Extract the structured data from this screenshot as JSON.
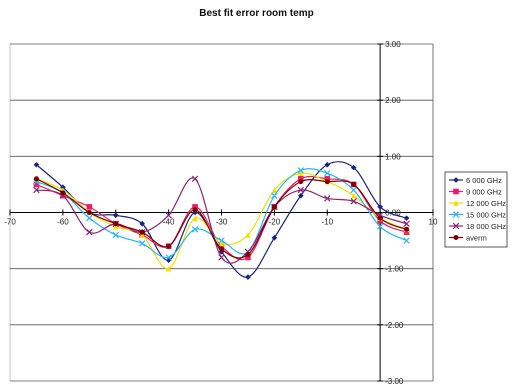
{
  "chart_data": {
    "type": "line",
    "title": "Best fit error room temp",
    "xlabel": "",
    "ylabel": "",
    "xlim": [
      -70,
      10
    ],
    "ylim": [
      -3,
      3
    ],
    "x_ticks": [
      -70,
      -60,
      -50,
      -40,
      -30,
      -20,
      -10,
      0,
      10
    ],
    "x_tick_labels": [
      "-70",
      "-60",
      "",
      "-40",
      "-30",
      "-20",
      "-10",
      "0",
      "10"
    ],
    "y_ticks": [
      3,
      2,
      1,
      0,
      -1,
      -2,
      -3
    ],
    "y_tick_labels": [
      "3.00",
      "2.00",
      "1.00",
      "0.00",
      "-1.00",
      "-2.00",
      "-3.00"
    ],
    "grid": true,
    "legend_position": "right",
    "x": [
      -65,
      -60,
      -55,
      -50,
      -45,
      -40,
      -35,
      -30,
      -25,
      -20,
      -15,
      -10,
      -5,
      0,
      5
    ],
    "series": [
      {
        "name": "6 000 GHz",
        "color": "#1a237e",
        "marker": "diamond",
        "values": [
          0.85,
          0.45,
          0.0,
          -0.05,
          -0.2,
          -0.85,
          0.0,
          -0.7,
          -1.15,
          -0.45,
          0.3,
          0.85,
          0.8,
          0.1,
          -0.1
        ]
      },
      {
        "name": "9 000 GHz",
        "color": "#e91e63",
        "marker": "square",
        "values": [
          0.5,
          0.3,
          0.1,
          -0.2,
          -0.4,
          -0.6,
          0.1,
          -0.6,
          -0.8,
          0.1,
          0.6,
          0.6,
          0.5,
          -0.15,
          -0.35
        ]
      },
      {
        "name": "12 000 GHz",
        "color": "#f0e000",
        "marker": "triangle",
        "values": [
          0.6,
          0.4,
          0.0,
          -0.25,
          -0.4,
          -1.0,
          -0.1,
          -0.55,
          -0.4,
          0.4,
          0.7,
          0.55,
          0.3,
          -0.1,
          -0.3
        ]
      },
      {
        "name": "15 000 GHz",
        "color": "#29b6f6",
        "marker": "x",
        "values": [
          0.55,
          0.35,
          -0.1,
          -0.4,
          -0.55,
          -0.8,
          -0.3,
          -0.5,
          -0.7,
          0.3,
          0.75,
          0.7,
          0.4,
          -0.25,
          -0.5
        ]
      },
      {
        "name": "18 000 GHz",
        "color": "#8e2470",
        "marker": "x",
        "values": [
          0.4,
          0.3,
          -0.35,
          -0.2,
          -0.35,
          -0.05,
          0.6,
          -0.8,
          -0.7,
          0.1,
          0.4,
          0.25,
          0.2,
          -0.05,
          -0.2
        ]
      },
      {
        "name": "averm",
        "color": "#7b0000",
        "marker": "circle",
        "values": [
          0.6,
          0.35,
          0.0,
          -0.2,
          -0.35,
          -0.6,
          0.05,
          -0.65,
          -0.75,
          0.1,
          0.55,
          0.55,
          0.5,
          -0.1,
          -0.3
        ]
      }
    ]
  }
}
